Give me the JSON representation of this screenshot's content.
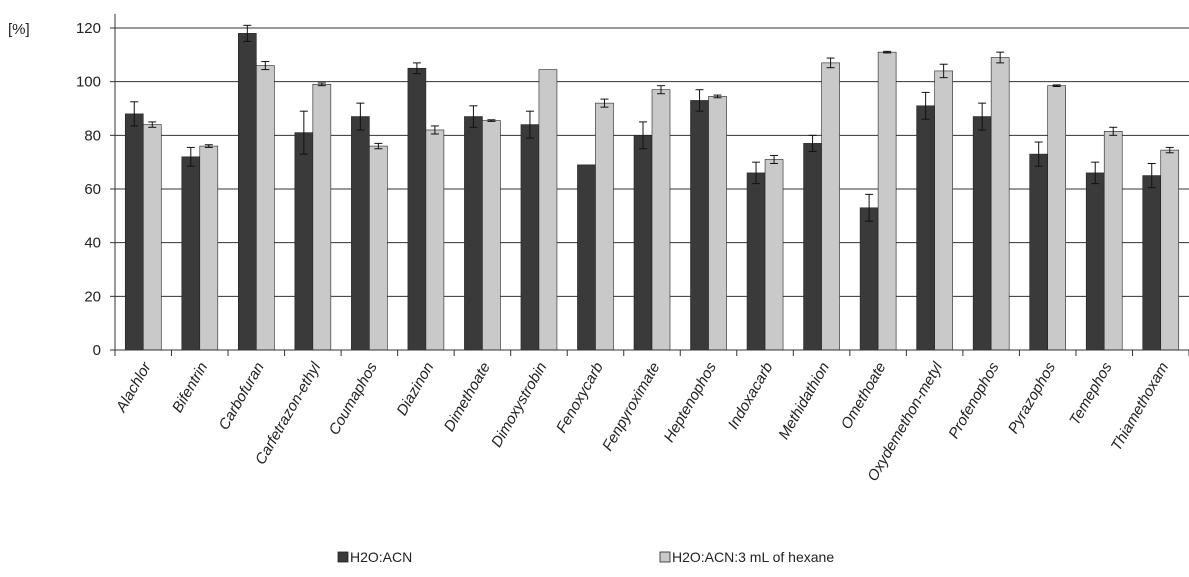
{
  "chart_data": {
    "type": "bar",
    "ylabel": "[%]",
    "ylim": [
      0,
      120
    ],
    "yticks": [
      0,
      20,
      40,
      60,
      80,
      100,
      120
    ],
    "grid": true,
    "legend_position": "bottom",
    "categories": [
      "Alachlor",
      "Bifentrin",
      "Carbofuran",
      "Carfetrazon-ethyl",
      "Coumaphos",
      "Diazinon",
      "Dimethoate",
      "Dimoxystrobin",
      "Fenoxycarb",
      "Fenpyroximate",
      "Heptenophos",
      "Indoxacarb",
      "Methidathion",
      "Omethoate",
      "Oxydemethon-metyl",
      "Profenophos",
      "Pyrazophos",
      "Temephos",
      "Thiamethoxam"
    ],
    "series": [
      {
        "name": "H2O:ACN",
        "color": "#3a3a3a",
        "values": [
          88,
          72,
          118,
          81,
          87,
          105,
          87,
          84,
          69,
          80,
          93,
          66,
          77,
          53,
          91,
          87,
          73,
          66,
          65
        ],
        "errors": [
          4.5,
          3.5,
          3,
          8,
          5,
          2,
          4,
          5,
          0,
          5,
          4,
          4,
          3,
          5,
          5,
          5,
          4.5,
          4,
          4.5
        ]
      },
      {
        "name": "H2O:ACN:3 mL of hexane",
        "color": "#c9c9c9",
        "values": [
          84,
          76,
          106,
          99,
          76,
          82,
          85.5,
          104.5,
          92,
          97,
          94.5,
          71,
          107,
          111,
          104,
          109,
          98.5,
          81.5,
          74.5
        ],
        "errors": [
          1,
          0.5,
          1.5,
          0.5,
          1,
          1.5,
          0.3,
          0,
          1.5,
          1.5,
          0.5,
          1.5,
          1.8,
          0.3,
          2.5,
          2,
          0.3,
          1.5,
          1
        ]
      }
    ]
  }
}
